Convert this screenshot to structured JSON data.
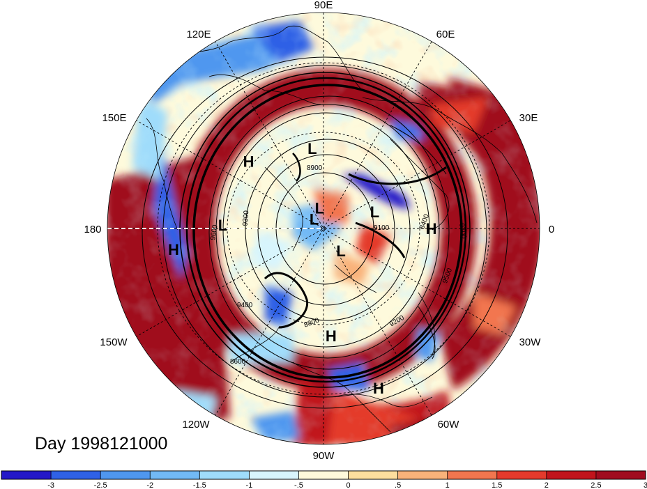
{
  "title": "Day 1998121000",
  "meridian_labels": [
    "90E",
    "60E",
    "30E",
    "0",
    "30W",
    "60W",
    "90W",
    "120W",
    "150W",
    "180",
    "150E",
    "120E"
  ],
  "pressure_centers": [
    {
      "letter": "L",
      "lon": 98,
      "lat": 49
    },
    {
      "letter": "H",
      "lon": 138,
      "lat": 40
    },
    {
      "letter": "L",
      "lon": 178,
      "lat": 40
    },
    {
      "letter": "H",
      "lon": -172,
      "lat": 20
    },
    {
      "letter": "L",
      "lon": 101,
      "lat": 79
    },
    {
      "letter": "L",
      "lon": 18,
      "lat": 62
    },
    {
      "letter": "H",
      "lon": 0,
      "lat": 37
    },
    {
      "letter": "L",
      "lon": 135,
      "lat": 83
    },
    {
      "letter": "L",
      "lon": -52,
      "lat": 75
    },
    {
      "letter": "H",
      "lon": -86,
      "lat": 37
    },
    {
      "letter": "H",
      "lon": -71,
      "lat": 14
    }
  ],
  "contour_labels": [
    "8900",
    "9600",
    "9300",
    "9400",
    "9200",
    "9100",
    "8800",
    "8600",
    "8400",
    "9500",
    "9700"
  ],
  "colorbar": {
    "ticks": [
      "-3",
      "-2.5",
      "-2",
      "-1.5",
      "-1",
      "-.5",
      "0",
      ".5",
      "1",
      "1.5",
      "2",
      "2.5",
      "3"
    ],
    "colors": [
      "#2418c8",
      "#2f61e6",
      "#4f97ef",
      "#72b9f5",
      "#9fdcfb",
      "#d8f5fd",
      "#fefadc",
      "#fdde9e",
      "#f9b27a",
      "#f2764f",
      "#e43a2c",
      "#c1141c",
      "#a00c1f"
    ]
  }
}
